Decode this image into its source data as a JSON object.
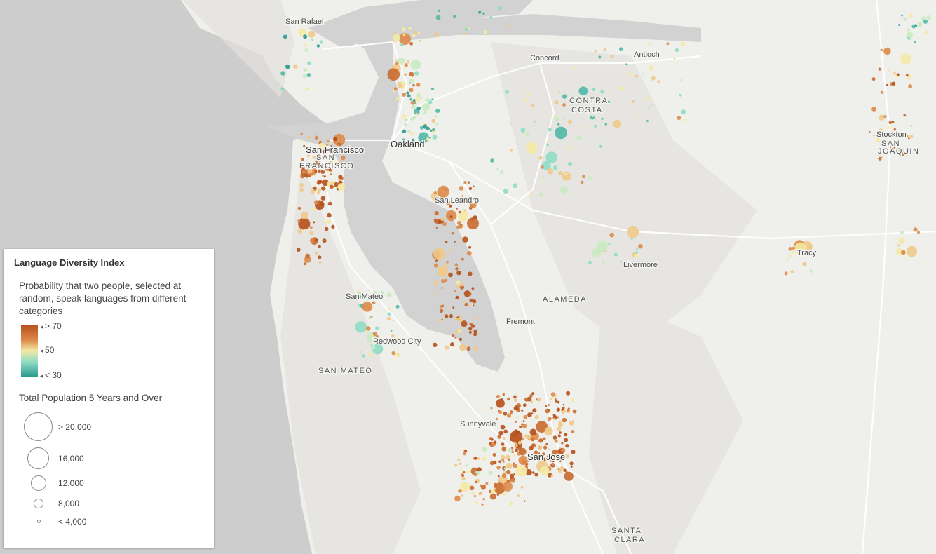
{
  "map": {
    "place_labels": [
      {
        "text": "San Rafael",
        "kind": "city"
      },
      {
        "text": "Concord",
        "kind": "city"
      },
      {
        "text": "Antioch",
        "kind": "city"
      },
      {
        "text": "CONTRA",
        "kind": "county"
      },
      {
        "text": "COSTA",
        "kind": "county"
      },
      {
        "text": "Stockton",
        "kind": "city"
      },
      {
        "text": "SAN",
        "kind": "county"
      },
      {
        "text": "JOAQUIN",
        "kind": "county"
      },
      {
        "text": "San Francisco",
        "kind": "bigcity"
      },
      {
        "text": "SAN",
        "kind": "county"
      },
      {
        "text": "FRANCISCO",
        "kind": "county"
      },
      {
        "text": "Oakland",
        "kind": "bigcity"
      },
      {
        "text": "San Leandro",
        "kind": "city"
      },
      {
        "text": "Tracy",
        "kind": "city"
      },
      {
        "text": "Livermore",
        "kind": "city"
      },
      {
        "text": "ALAMEDA",
        "kind": "county"
      },
      {
        "text": "San Mateo",
        "kind": "city"
      },
      {
        "text": "Fremont",
        "kind": "city"
      },
      {
        "text": "Redwood City",
        "kind": "city"
      },
      {
        "text": "SAN MATEO",
        "kind": "county"
      },
      {
        "text": "Sunnyvale",
        "kind": "city"
      },
      {
        "text": "San Jose",
        "kind": "bigcity"
      },
      {
        "text": "SANTA",
        "kind": "county"
      },
      {
        "text": "CLARA",
        "kind": "county"
      }
    ],
    "colors": {
      "ocean": "#cdcdcd",
      "land": "#efefec",
      "water": "#d2d2d2",
      "road": "#ffffff",
      "low": "#2c9a8f",
      "mid": "#f3e9a4",
      "high": "#b5501a"
    }
  },
  "legend": {
    "title": "Language Diversity Index",
    "description": "Probability that two people, selected at random, speak languages from different categories",
    "color_stops": [
      {
        "label": "> 70",
        "color": "#b5501a"
      },
      {
        "label": "50",
        "color": "#f3e9a4"
      },
      {
        "label": "< 30",
        "color": "#2c9a8f"
      }
    ],
    "size_title": "Total Population 5 Years and Over",
    "size_stops": [
      {
        "label": "> 20,000"
      },
      {
        "label": "16,000"
      },
      {
        "label": "12,000"
      },
      {
        "label": "8,000"
      },
      {
        "label": "< 4,000"
      }
    ]
  }
}
